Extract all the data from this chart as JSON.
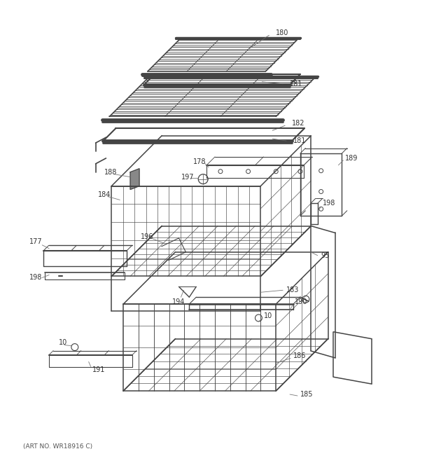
{
  "art_no": "(ART NO. WR18916 C)",
  "background_color": "#ffffff",
  "line_color": "#444444",
  "text_color": "#333333",
  "fig_width": 6.2,
  "fig_height": 6.61,
  "dpi": 100
}
